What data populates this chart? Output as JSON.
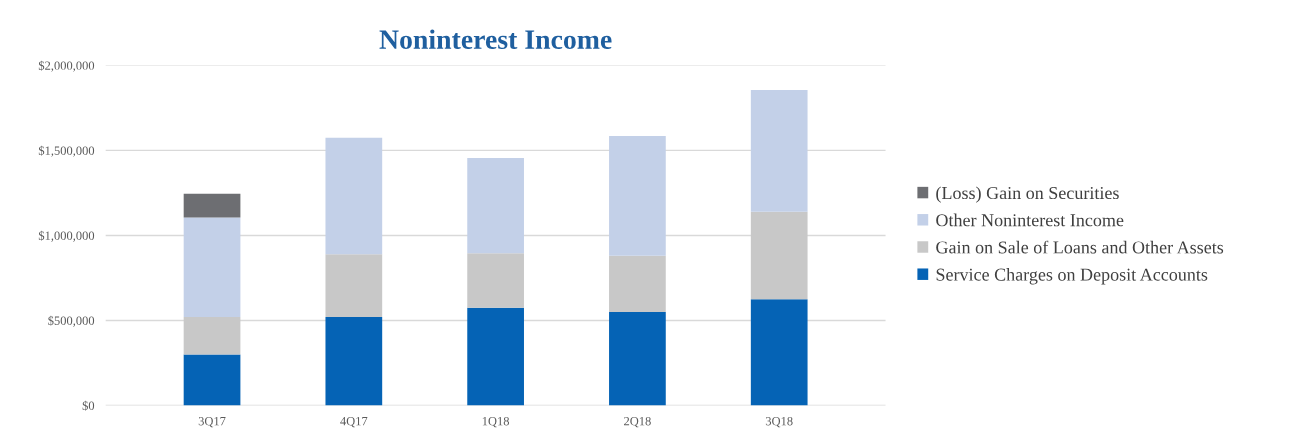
{
  "chart_data": {
    "type": "bar",
    "title": "Noninterest Income",
    "stacked": true,
    "categories": [
      "3Q17",
      "4Q17",
      "1Q18",
      "2Q18",
      "3Q18"
    ],
    "series": [
      {
        "name": "Service Charges on Deposit Accounts",
        "color": "#0563b5",
        "values": [
          300000,
          520000,
          575000,
          550000,
          625000
        ]
      },
      {
        "name": "Gain on Sale of Loans and Other Assets",
        "color": "#c8c8c8",
        "values": [
          220000,
          370000,
          320000,
          330000,
          515000
        ]
      },
      {
        "name": "Other Noninterest Income",
        "color": "#c3d0e8",
        "values": [
          585000,
          685000,
          560000,
          705000,
          715000
        ]
      },
      {
        "name": "(Loss) Gain on Securities",
        "color": "#6d6e72",
        "values": [
          140000,
          null,
          null,
          null,
          null
        ]
      }
    ],
    "ylim": [
      0,
      2000000
    ],
    "yticks": [
      {
        "value": 0,
        "label": "$0"
      },
      {
        "value": 500000,
        "label": "$500,000"
      },
      {
        "value": 1000000,
        "label": "$1,000,000"
      },
      {
        "value": 1500000,
        "label": "$1,500,000"
      },
      {
        "value": 2000000,
        "label": "$2,000,000"
      }
    ],
    "grid": "y",
    "legend": "right"
  }
}
